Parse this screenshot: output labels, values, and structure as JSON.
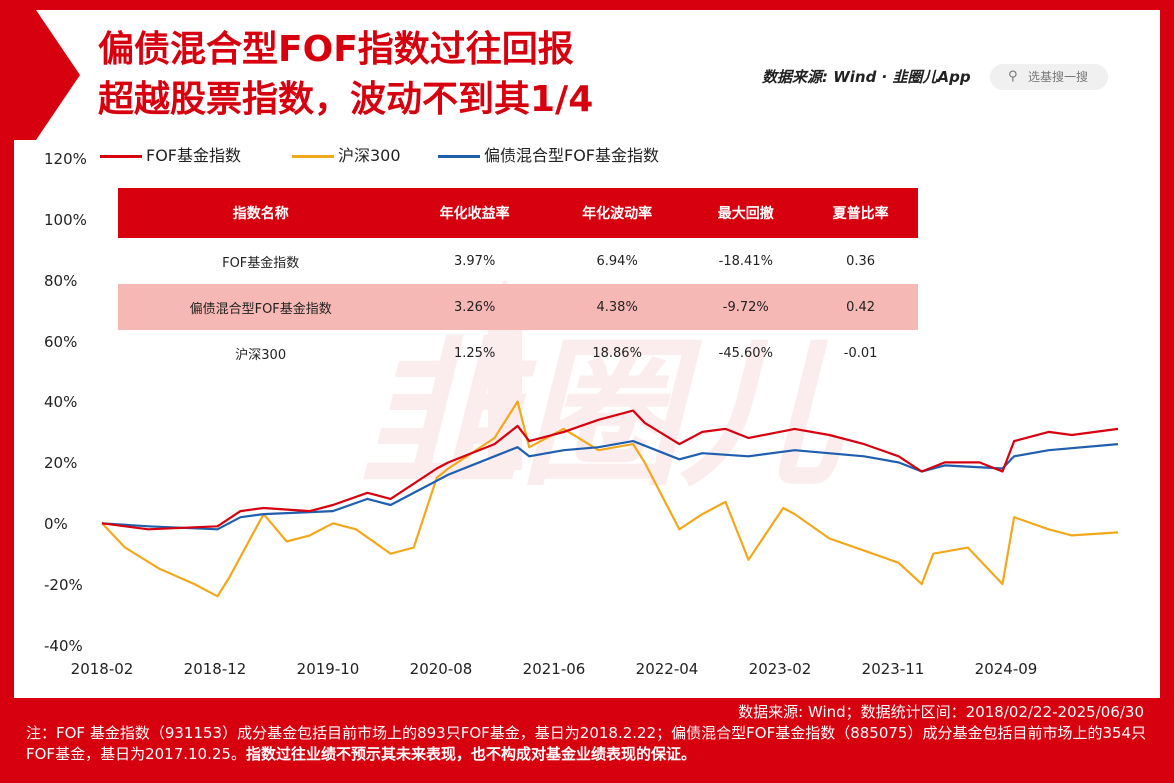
{
  "title": {
    "line1": "偏债混合型FOF指数过往回报",
    "line2": "超越股票指数，波动不到其1/4"
  },
  "header": {
    "source": "数据来源: Wind · 韭圈儿App",
    "search_placeholder": "选基搜一搜"
  },
  "colors": {
    "brand_red": "#d6000f",
    "fof": "#d6000f",
    "hs300": "#f2a81d",
    "mixed": "#1f5fae",
    "highlight_row": "#f6b8b4"
  },
  "table": {
    "headers": [
      "指数名称",
      "年化收益率",
      "年化波动率",
      "最大回撤",
      "夏普比率"
    ],
    "rows": [
      [
        "FOF基金指数",
        "3.97%",
        "6.94%",
        "-18.41%",
        "0.36"
      ],
      [
        "偏债混合型FOF基金指数",
        "3.26%",
        "4.38%",
        "-9.72%",
        "0.42"
      ],
      [
        "沪深300",
        "1.25%",
        "18.86%",
        "-45.60%",
        "-0.01"
      ]
    ],
    "highlight_row": 1
  },
  "chart_data": {
    "type": "line",
    "yticks": [
      "120%",
      "100%",
      "80%",
      "60%",
      "40%",
      "20%",
      "0%",
      "-20%",
      "-40%"
    ],
    "xticks": [
      "2018-02",
      "2018-12",
      "2019-10",
      "2020-08",
      "2021-06",
      "2022-04",
      "2023-02",
      "2023-11",
      "2024-09"
    ],
    "ylim": [
      -40,
      120
    ],
    "x_range": [
      "2018-02",
      "2025-06"
    ],
    "legend_position": "top-left",
    "series": [
      {
        "name": "FOF基金指数",
        "color": "#d6000f",
        "points": [
          [
            "2018-02",
            0
          ],
          [
            "2018-06",
            -2
          ],
          [
            "2018-12",
            -1
          ],
          [
            "2019-02",
            4
          ],
          [
            "2019-04",
            5
          ],
          [
            "2019-08",
            4
          ],
          [
            "2019-10",
            6
          ],
          [
            "2020-01",
            10
          ],
          [
            "2020-03",
            8
          ],
          [
            "2020-07",
            18
          ],
          [
            "2020-08",
            20
          ],
          [
            "2020-12",
            26
          ],
          [
            "2021-02",
            32
          ],
          [
            "2021-03",
            27
          ],
          [
            "2021-06",
            30
          ],
          [
            "2021-09",
            34
          ],
          [
            "2021-12",
            37
          ],
          [
            "2022-01",
            33
          ],
          [
            "2022-04",
            26
          ],
          [
            "2022-06",
            30
          ],
          [
            "2022-08",
            31
          ],
          [
            "2022-10",
            28
          ],
          [
            "2023-02",
            31
          ],
          [
            "2023-05",
            29
          ],
          [
            "2023-08",
            26
          ],
          [
            "2023-11",
            22
          ],
          [
            "2024-01",
            17
          ],
          [
            "2024-03",
            20
          ],
          [
            "2024-06",
            20
          ],
          [
            "2024-08",
            17
          ],
          [
            "2024-09",
            27
          ],
          [
            "2024-12",
            30
          ],
          [
            "2025-02",
            29
          ],
          [
            "2025-06",
            31
          ]
        ]
      },
      {
        "name": "沪深300",
        "color": "#f2a81d",
        "points": [
          [
            "2018-02",
            0
          ],
          [
            "2018-04",
            -8
          ],
          [
            "2018-07",
            -15
          ],
          [
            "2018-10",
            -20
          ],
          [
            "2018-12",
            -24
          ],
          [
            "2019-01",
            -18
          ],
          [
            "2019-04",
            3
          ],
          [
            "2019-06",
            -6
          ],
          [
            "2019-08",
            -4
          ],
          [
            "2019-10",
            0
          ],
          [
            "2019-12",
            -2
          ],
          [
            "2020-03",
            -10
          ],
          [
            "2020-05",
            -8
          ],
          [
            "2020-07",
            15
          ],
          [
            "2020-08",
            18
          ],
          [
            "2020-12",
            28
          ],
          [
            "2021-02",
            40
          ],
          [
            "2021-03",
            25
          ],
          [
            "2021-06",
            31
          ],
          [
            "2021-09",
            24
          ],
          [
            "2021-12",
            26
          ],
          [
            "2022-01",
            20
          ],
          [
            "2022-04",
            -2
          ],
          [
            "2022-06",
            3
          ],
          [
            "2022-08",
            7
          ],
          [
            "2022-10",
            -12
          ],
          [
            "2023-01",
            5
          ],
          [
            "2023-02",
            3
          ],
          [
            "2023-05",
            -5
          ],
          [
            "2023-08",
            -9
          ],
          [
            "2023-11",
            -13
          ],
          [
            "2024-01",
            -20
          ],
          [
            "2024-02",
            -10
          ],
          [
            "2024-05",
            -8
          ],
          [
            "2024-08",
            -20
          ],
          [
            "2024-09",
            2
          ],
          [
            "2024-12",
            -2
          ],
          [
            "2025-02",
            -4
          ],
          [
            "2025-06",
            -3
          ]
        ]
      },
      {
        "name": "偏债混合型FOF基金指数",
        "color": "#1f5fae",
        "points": [
          [
            "2018-02",
            0
          ],
          [
            "2018-06",
            -1
          ],
          [
            "2018-12",
            -2
          ],
          [
            "2019-02",
            2
          ],
          [
            "2019-04",
            3
          ],
          [
            "2019-10",
            4
          ],
          [
            "2020-01",
            8
          ],
          [
            "2020-03",
            6
          ],
          [
            "2020-08",
            16
          ],
          [
            "2020-12",
            22
          ],
          [
            "2021-02",
            25
          ],
          [
            "2021-03",
            22
          ],
          [
            "2021-06",
            24
          ],
          [
            "2021-09",
            25
          ],
          [
            "2021-12",
            27
          ],
          [
            "2022-04",
            21
          ],
          [
            "2022-06",
            23
          ],
          [
            "2022-10",
            22
          ],
          [
            "2023-02",
            24
          ],
          [
            "2023-08",
            22
          ],
          [
            "2023-11",
            20
          ],
          [
            "2024-01",
            17
          ],
          [
            "2024-03",
            19
          ],
          [
            "2024-08",
            18
          ],
          [
            "2024-09",
            22
          ],
          [
            "2024-12",
            24
          ],
          [
            "2025-06",
            26
          ]
        ]
      }
    ]
  },
  "footer": {
    "line1": "数据来源: Wind；数据统计区间：2018/02/22-2025/06/30",
    "note": "注：FOF 基金指数（931153）成分基金包括目前市场上的893只FOF基金，基日为2018.2.22；偏债混合型FOF基金指数（885075）成分基金包括目前市场上的354只FOF基金，基日为2017.10.25。",
    "disclaimer": "指数过往业绩不预示其未来表现，也不构成对基金业绩表现的保证。"
  }
}
